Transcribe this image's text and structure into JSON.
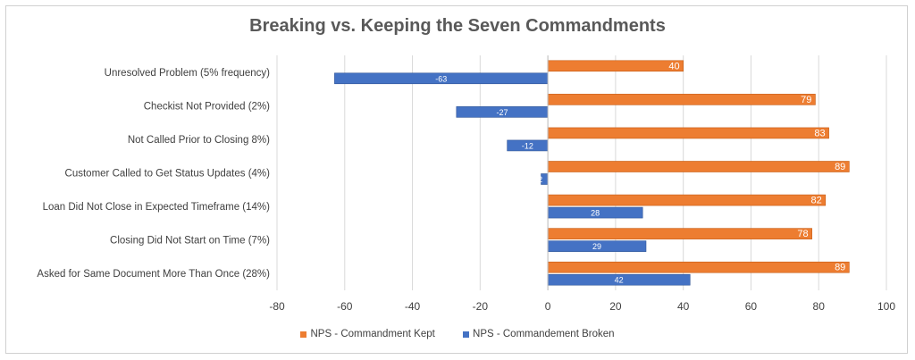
{
  "chart_data": {
    "type": "bar",
    "orientation": "horizontal",
    "title": "Breaking vs. Keeping the Seven Commandments",
    "categories": [
      "Unresolved Problem   (5% frequency)",
      "Checkist Not Provided  (2%)",
      "Not Called Prior to Closing  8%)",
      "Customer Called to Get Status Updates  (4%)",
      "Loan Did Not Close in Expected Timeframe  (14%)",
      "Closing Did Not Start on Time  (7%)",
      "Asked for Same Document More Than Once  (28%)"
    ],
    "series": [
      {
        "name": "NPS - Commandment Kept",
        "values": [
          40,
          79,
          83,
          89,
          82,
          78,
          89
        ],
        "labels": [
          "40",
          "79",
          "83",
          "89",
          "82",
          "78",
          "89"
        ],
        "color": "#ED7D31"
      },
      {
        "name": "NPS - Commandement Broken",
        "values": [
          -63,
          -27,
          -12,
          -2,
          28,
          29,
          42
        ],
        "labels": [
          "-63",
          "-27",
          "-12",
          "-2",
          "28",
          "29",
          "42"
        ],
        "color": "#4472C4"
      }
    ],
    "xlim": [
      -80,
      100
    ],
    "xticks": [
      -80,
      -60,
      -40,
      -20,
      0,
      20,
      40,
      60,
      80,
      100
    ],
    "grid": true,
    "legend_position": "bottom"
  }
}
